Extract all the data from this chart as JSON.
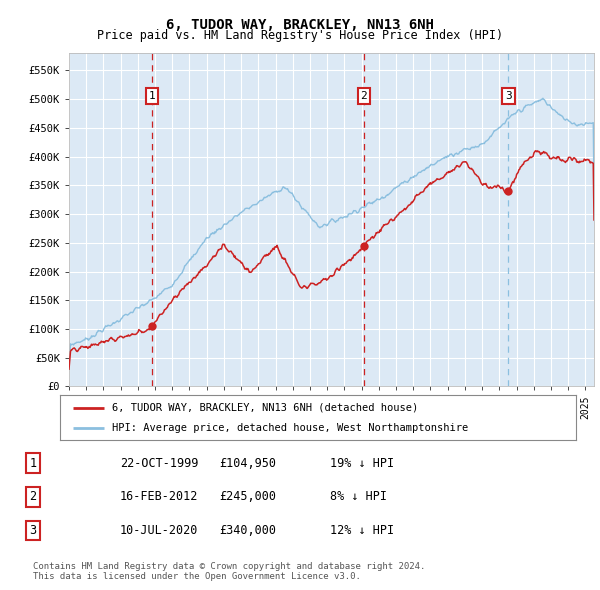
{
  "title": "6, TUDOR WAY, BRACKLEY, NN13 6NH",
  "subtitle": "Price paid vs. HM Land Registry's House Price Index (HPI)",
  "title_fontsize": 10,
  "subtitle_fontsize": 8.5,
  "ylim": [
    0,
    580000
  ],
  "yticks": [
    0,
    50000,
    100000,
    150000,
    200000,
    250000,
    300000,
    350000,
    400000,
    450000,
    500000,
    550000
  ],
  "ytick_labels": [
    "£0",
    "£50K",
    "£100K",
    "£150K",
    "£200K",
    "£250K",
    "£300K",
    "£350K",
    "£400K",
    "£450K",
    "£500K",
    "£550K"
  ],
  "plot_bg_color": "#dce9f5",
  "grid_color": "#ffffff",
  "hpi_line_color": "#8bbfdf",
  "price_line_color": "#cc2222",
  "sale_marker_color": "#cc2222",
  "sale1_x": 1999.81,
  "sale1_y": 104950,
  "sale2_x": 2012.12,
  "sale2_y": 245000,
  "sale3_x": 2020.53,
  "sale3_y": 340000,
  "vline1_color": "#cc2222",
  "vline2_color": "#cc2222",
  "vline3_color": "#8bbfdf",
  "legend_label1": "6, TUDOR WAY, BRACKLEY, NN13 6NH (detached house)",
  "legend_label2": "HPI: Average price, detached house, West Northamptonshire",
  "table_entries": [
    {
      "num": "1",
      "date": "22-OCT-1999",
      "price": "£104,950",
      "note": "19% ↓ HPI"
    },
    {
      "num": "2",
      "date": "16-FEB-2012",
      "price": "£245,000",
      "note": "8% ↓ HPI"
    },
    {
      "num": "3",
      "date": "10-JUL-2020",
      "price": "£340,000",
      "note": "12% ↓ HPI"
    }
  ],
  "footnote": "Contains HM Land Registry data © Crown copyright and database right 2024.\nThis data is licensed under the Open Government Licence v3.0.",
  "xmin": 1995.0,
  "xmax": 2025.5,
  "xticks": [
    1995,
    1996,
    1997,
    1998,
    1999,
    2000,
    2001,
    2002,
    2003,
    2004,
    2005,
    2006,
    2007,
    2008,
    2009,
    2010,
    2011,
    2012,
    2013,
    2014,
    2015,
    2016,
    2017,
    2018,
    2019,
    2020,
    2021,
    2022,
    2023,
    2024,
    2025
  ]
}
